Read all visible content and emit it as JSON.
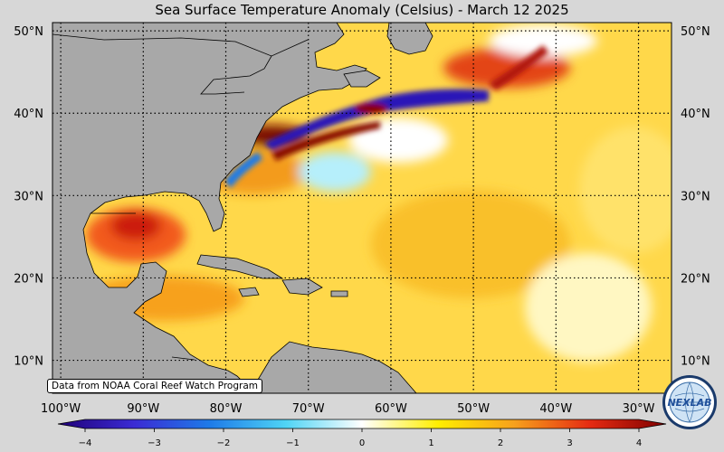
{
  "title": "Sea Surface Temperature Anomaly (Celsius) - March 12 2025",
  "credit": "Data from NOAA Coral Reef Watch Program",
  "logo_text": "NEXLAB",
  "map": {
    "lon_min": -101,
    "lon_max": -26,
    "lat_min": 6,
    "lat_max": 51,
    "lat_ticks": [
      {
        "lat": 50,
        "label": "50°N"
      },
      {
        "lat": 40,
        "label": "40°N"
      },
      {
        "lat": 30,
        "label": "30°N"
      },
      {
        "lat": 20,
        "label": "20°N"
      },
      {
        "lat": 10,
        "label": "10°N"
      }
    ],
    "lon_ticks": [
      {
        "lon": -100,
        "label": "100°W"
      },
      {
        "lon": -90,
        "label": "90°W"
      },
      {
        "lon": -80,
        "label": "80°W"
      },
      {
        "lon": -70,
        "label": "70°W"
      },
      {
        "lon": -60,
        "label": "60°W"
      },
      {
        "lon": -50,
        "label": "50°W"
      },
      {
        "lon": -40,
        "label": "40°W"
      },
      {
        "lon": -30,
        "label": "30°W"
      }
    ],
    "land_color": "#a8a8a8",
    "ocean_base_color": "#ffd84a"
  },
  "colorbar": {
    "min": -4,
    "max": 4,
    "ticks": [
      {
        "value": -4,
        "label": "−4"
      },
      {
        "value": -3,
        "label": "−3"
      },
      {
        "value": -2,
        "label": "−2"
      },
      {
        "value": -1,
        "label": "−1"
      },
      {
        "value": 0,
        "label": "0"
      },
      {
        "value": 1,
        "label": "1"
      },
      {
        "value": 2,
        "label": "2"
      },
      {
        "value": 3,
        "label": "3"
      },
      {
        "value": 4,
        "label": "4"
      }
    ],
    "colors": [
      "#1f0077",
      "#3b2bd4",
      "#1e7be8",
      "#4fd4f5",
      "#ffffff",
      "#ffee00",
      "#f7a11c",
      "#e52b12",
      "#7e0000"
    ]
  }
}
